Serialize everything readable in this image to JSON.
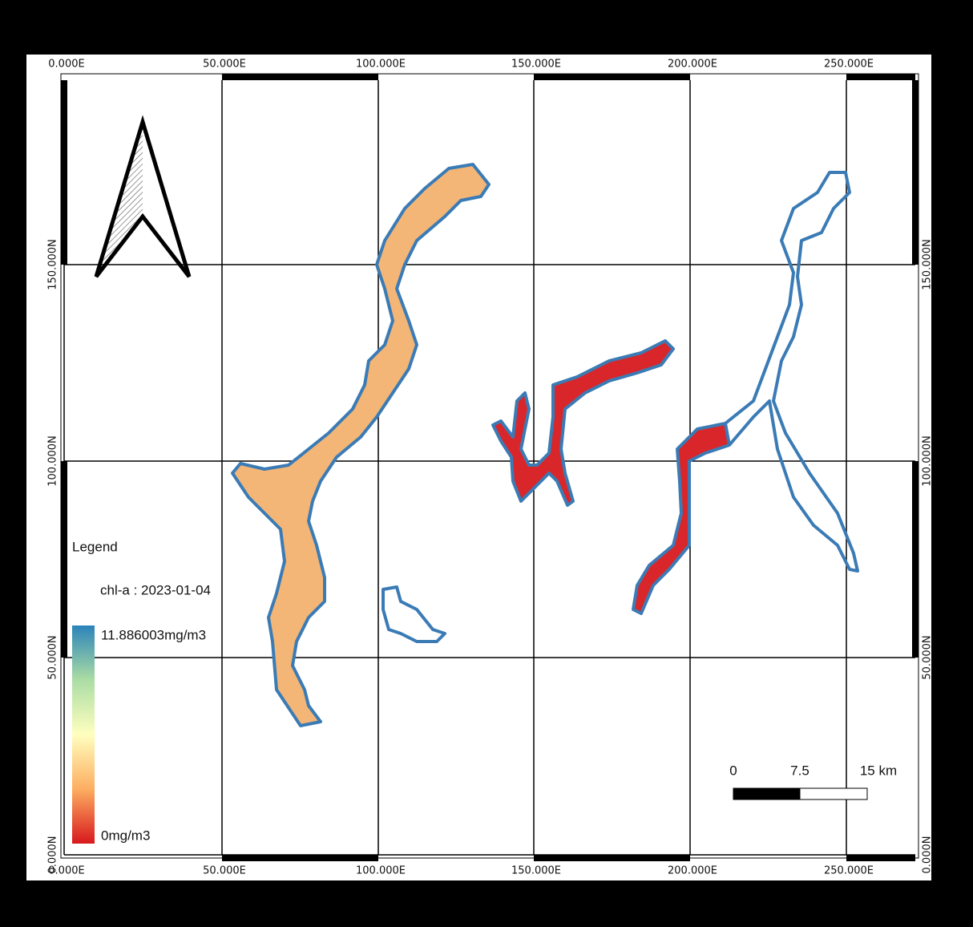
{
  "grid": {
    "x_labels_top": [
      "0.000E",
      "50.000E",
      "100.000E",
      "150.000E",
      "200.000E",
      "250.000E"
    ],
    "x_labels_bottom": [
      "0.000E",
      "50.000E",
      "100.000E",
      "150.000E",
      "200.000E",
      "250.000E"
    ],
    "y_labels_left": [
      "150.000N",
      "100.000N",
      "50.000N",
      "0.000N"
    ],
    "y_labels_right": [
      "150.000N",
      "100.000N",
      "50.000N",
      "0.000N"
    ]
  },
  "legend": {
    "title": "Legend",
    "layer": "chl-a : 2023-01-04",
    "max_label": "11.886003mg/m3",
    "min_label": "0mg/m3"
  },
  "scale_bar": {
    "labels": [
      "0",
      "7.5",
      "15 km"
    ]
  }
}
